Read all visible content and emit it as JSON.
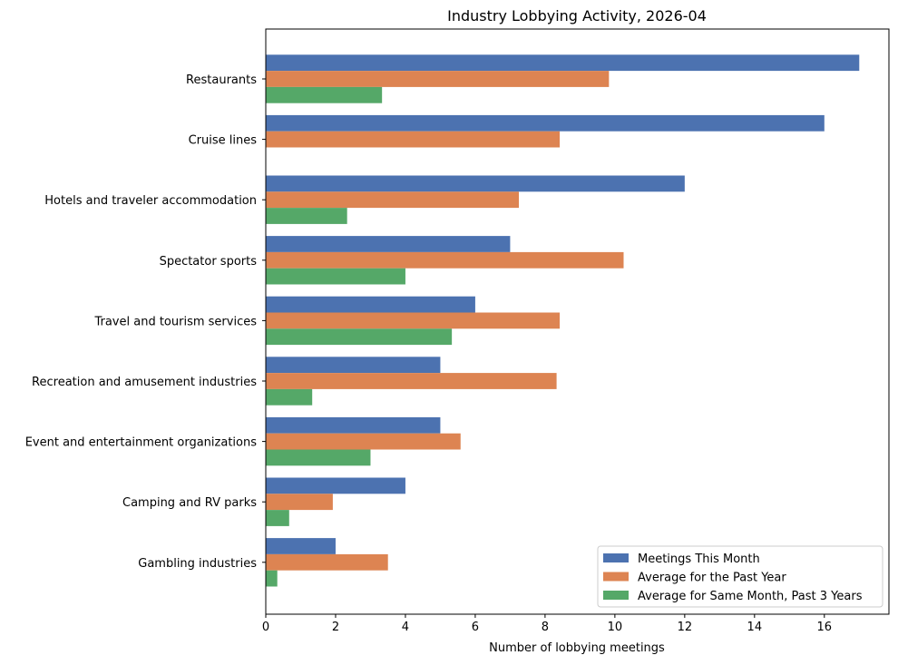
{
  "chart_data": {
    "type": "bar",
    "orientation": "horizontal",
    "title": "Industry Lobbying Activity, 2026-04",
    "xlabel": "Number of lobbying meetings",
    "ylabel": "",
    "xlim": [
      0,
      17.85
    ],
    "xticks": [
      0,
      2,
      4,
      6,
      8,
      10,
      12,
      14,
      16
    ],
    "xtick_labels": [
      "0",
      "2",
      "4",
      "6",
      "8",
      "10",
      "12",
      "14",
      "16"
    ],
    "grid": false,
    "legend_position": "lower-right",
    "categories": [
      "Restaurants",
      "Cruise lines",
      "Hotels and traveler accommodation",
      "Spectator sports",
      "Travel and tourism services",
      "Recreation and amusement industries",
      "Event and entertainment organizations",
      "Camping and RV parks",
      "Gambling industries"
    ],
    "series": [
      {
        "name": "Meetings This Month",
        "color": "#4c72b0",
        "values": [
          17,
          16,
          12,
          7,
          6,
          5,
          5,
          4,
          2
        ]
      },
      {
        "name": "Average for the Past Year",
        "color": "#dd8452",
        "values": [
          9.83,
          8.42,
          7.25,
          10.25,
          8.42,
          8.33,
          5.58,
          1.92,
          3.5
        ]
      },
      {
        "name": "Average for Same Month, Past 3 Years",
        "color": "#55a868",
        "values": [
          3.33,
          0,
          2.33,
          4.0,
          5.33,
          1.33,
          3.0,
          0.67,
          0.33
        ]
      }
    ]
  }
}
